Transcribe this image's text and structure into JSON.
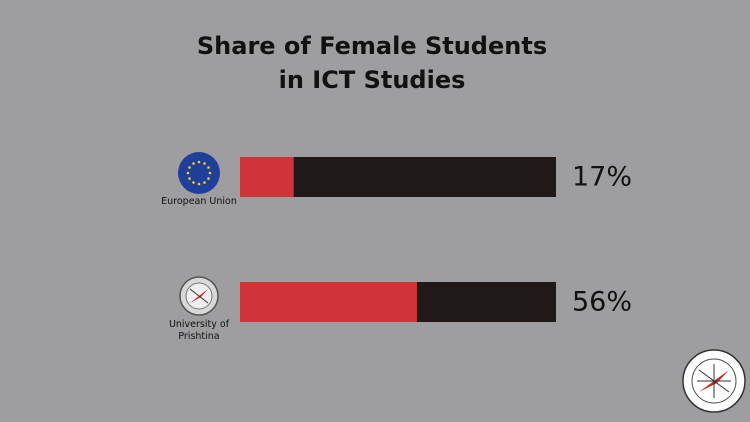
{
  "chart_data": {
    "type": "progress-bar",
    "title": [
      "Share of Female Students",
      "in ICT Studies"
    ],
    "categories": [
      "European Union",
      "University of Prishtina"
    ],
    "values": [
      17,
      56
    ],
    "value_labels": [
      "17%",
      "56%"
    ],
    "xlim": [
      0,
      100
    ],
    "color": "#d13438",
    "track_color": "#1f1a17"
  }
}
